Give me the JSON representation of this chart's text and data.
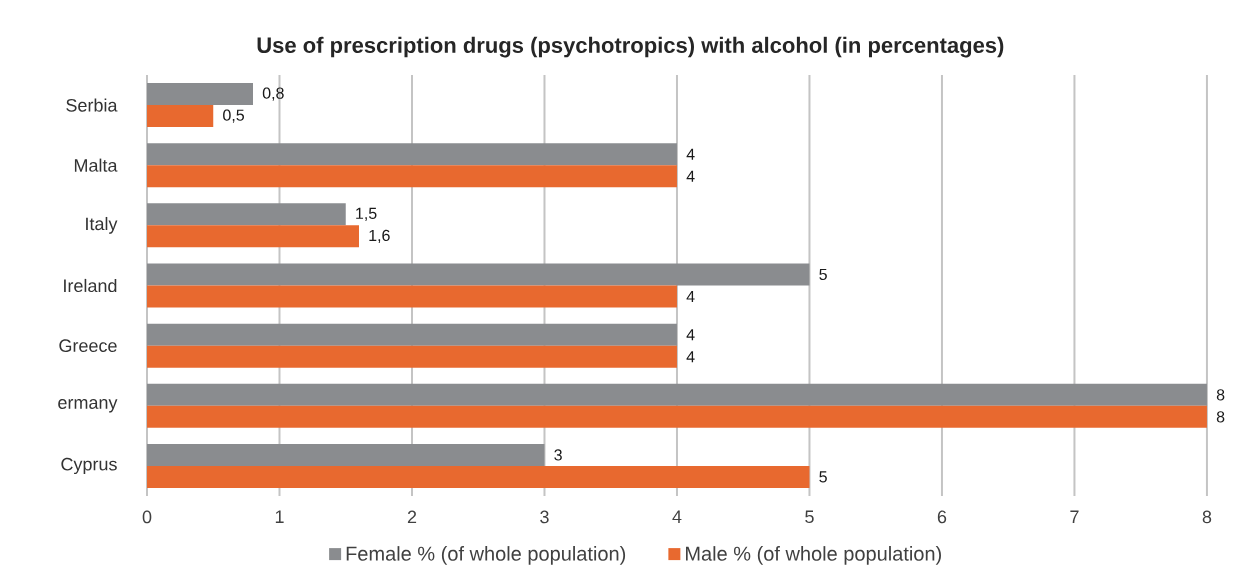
{
  "chart_data": {
    "type": "bar",
    "orientation": "horizontal",
    "title": "Use of prescription drugs (psychotropics) with alcohol (in percentages)",
    "categories": [
      "Serbia",
      "Malta",
      "Italy",
      "Ireland",
      "Greece",
      "ermany",
      "Cyprus"
    ],
    "series": [
      {
        "name": "Female % (of whole population)",
        "color": "#8a8c8f",
        "values": [
          0.8,
          4,
          1.5,
          5,
          4,
          8,
          3
        ],
        "value_labels": [
          "0,8",
          "4",
          "1,5",
          "5",
          "4",
          "8",
          "3"
        ]
      },
      {
        "name": "Male % (of whole population)",
        "color": "#e8692f",
        "values": [
          0.5,
          4,
          1.6,
          4,
          4,
          8,
          5
        ],
        "value_labels": [
          "0,5",
          "4",
          "1,6",
          "4",
          "4",
          "8",
          "5"
        ]
      }
    ],
    "xlim": [
      0,
      8
    ],
    "xticks": [
      0,
      1,
      2,
      3,
      4,
      5,
      6,
      7,
      8
    ],
    "grid": "x",
    "legend": "bottom"
  }
}
